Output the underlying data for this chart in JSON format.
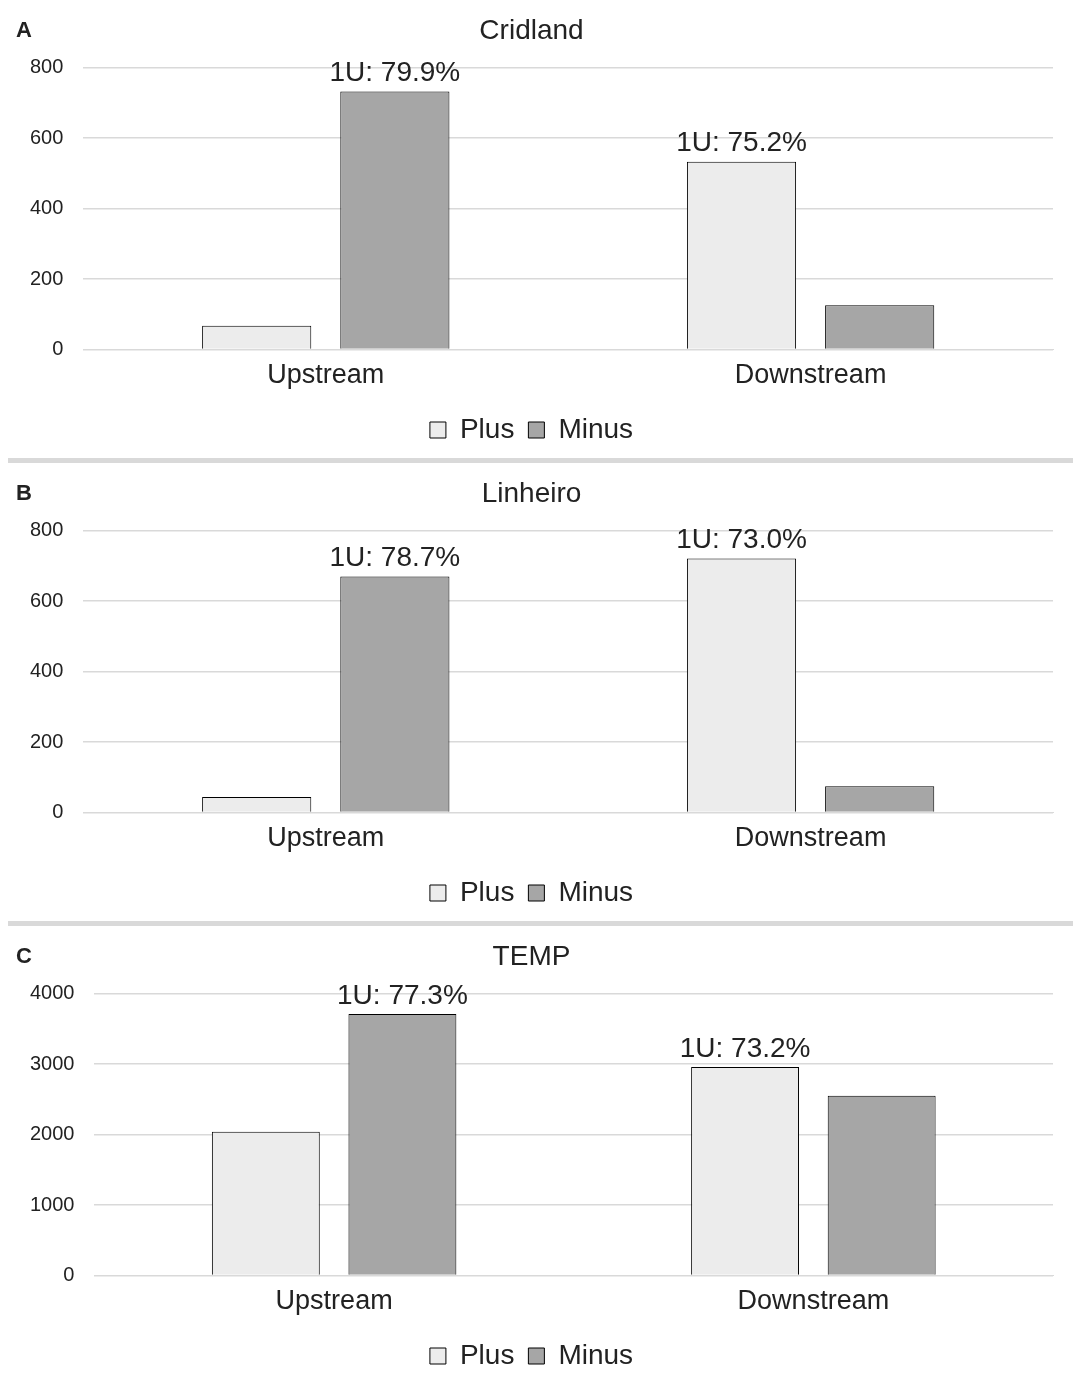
{
  "chart_data": [
    {
      "type": "bar",
      "title": "Cridland",
      "categories": [
        "Upstream",
        "Downstream"
      ],
      "series": [
        {
          "name": "Plus",
          "color": "#ececec",
          "values": [
            68,
            533
          ]
        },
        {
          "name": "Minus",
          "color": "#a6a6a6",
          "values": [
            732,
            126
          ]
        }
      ],
      "ylim": [
        0,
        800
      ],
      "yticks": [
        0,
        200,
        400,
        600,
        800
      ],
      "grid": "y",
      "legend": "bottom",
      "annotations": [
        "A",
        "1U: 79.9%",
        "1U: 75.2%"
      ]
    },
    {
      "type": "bar",
      "title": "Linheiro",
      "categories": [
        "Upstream",
        "Downstream"
      ],
      "series": [
        {
          "name": "Plus",
          "color": "#ececec",
          "values": [
            44,
            721
          ]
        },
        {
          "name": "Minus",
          "color": "#a6a6a6",
          "values": [
            670,
            75
          ]
        }
      ],
      "ylim": [
        0,
        800
      ],
      "yticks": [
        0,
        200,
        400,
        600,
        800
      ],
      "grid": "y",
      "legend": "bottom",
      "annotations": [
        "B",
        "1U: 78.7%",
        "1U: 73.0%"
      ]
    },
    {
      "type": "bar",
      "title": "TEMP",
      "categories": [
        "Upstream",
        "Downstream"
      ],
      "series": [
        {
          "name": "Plus",
          "color": "#ececec",
          "values": [
            2040,
            2960
          ]
        },
        {
          "name": "Minus",
          "color": "#a6a6a6",
          "values": [
            3710,
            2550
          ]
        }
      ],
      "ylim": [
        0,
        4000
      ],
      "yticks": [
        0,
        1000,
        2000,
        3000,
        4000
      ],
      "grid": "y",
      "legend": "bottom",
      "annotations": [
        "C",
        "1U: 77.3%",
        "1U: 73.2%"
      ]
    }
  ]
}
